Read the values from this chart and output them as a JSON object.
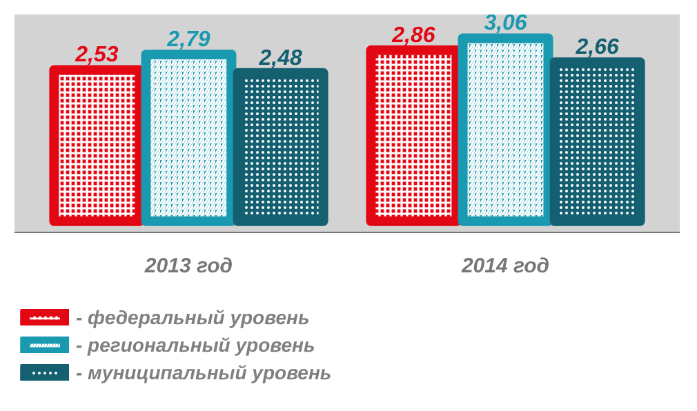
{
  "chart_data": {
    "type": "bar",
    "categories": [
      "2013 год",
      "2014 год"
    ],
    "series": [
      {
        "name": "- федеральный уровень",
        "color": "#e30613",
        "values": [
          2.53,
          2.86
        ],
        "value_labels": [
          "2,53",
          "2,86"
        ]
      },
      {
        "name": "- региональный уровень",
        "color": "#1a9ab0",
        "values": [
          2.79,
          3.06
        ],
        "value_labels": [
          "2,79",
          "3,06"
        ]
      },
      {
        "name": "- муниципальный уровень",
        "color": "#145f70",
        "values": [
          2.48,
          2.66
        ],
        "value_labels": [
          "2,48",
          "2,66"
        ]
      }
    ],
    "legend": "bottom",
    "tick_labels": "x"
  }
}
